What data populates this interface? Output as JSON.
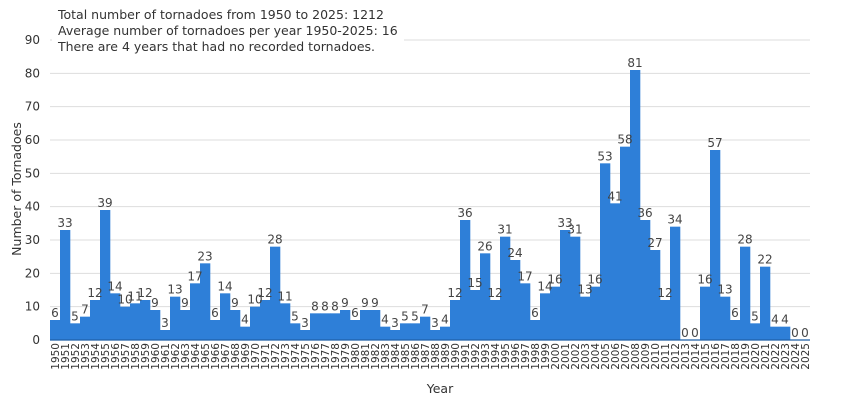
{
  "chart_data": {
    "type": "bar",
    "title": "",
    "xlabel": "Year",
    "ylabel": "Number of Tornadoes",
    "ylim": [
      0,
      90
    ],
    "yticks": [
      0,
      10,
      20,
      30,
      40,
      50,
      60,
      70,
      80,
      90
    ],
    "grid": "horizontal",
    "bar_color": "#2e7fd8",
    "axis_color": "#1f5fa8",
    "annotations": [
      "Total number of tornadoes from 1950 to 2025: 1212",
      "Average number of tornadoes per year 1950-2025: 16",
      "There are 4 years that had no recorded tornadoes."
    ],
    "categories": [
      "1950",
      "1951",
      "1952",
      "1953",
      "1954",
      "1955",
      "1956",
      "1957",
      "1958",
      "1959",
      "1960",
      "1961",
      "1962",
      "1963",
      "1964",
      "1965",
      "1966",
      "1967",
      "1968",
      "1969",
      "1970",
      "1971",
      "1972",
      "1973",
      "1974",
      "1975",
      "1976",
      "1977",
      "1978",
      "1979",
      "1980",
      "1981",
      "1982",
      "1983",
      "1984",
      "1985",
      "1986",
      "1987",
      "1988",
      "1989",
      "1990",
      "1991",
      "1992",
      "1993",
      "1994",
      "1995",
      "1996",
      "1997",
      "1998",
      "1999",
      "2000",
      "2001",
      "2002",
      "2003",
      "2004",
      "2005",
      "2006",
      "2007",
      "2008",
      "2009",
      "2010",
      "2011",
      "2012",
      "2013",
      "2014",
      "2015",
      "2016",
      "2017",
      "2018",
      "2019",
      "2020",
      "2021",
      "2022",
      "2023",
      "2024",
      "2025"
    ],
    "values": [
      6,
      33,
      5,
      7,
      12,
      39,
      14,
      10,
      11,
      12,
      9,
      3,
      13,
      9,
      17,
      23,
      6,
      14,
      9,
      4,
      10,
      12,
      28,
      11,
      5,
      3,
      8,
      8,
      8,
      9,
      6,
      9,
      9,
      4,
      3,
      5,
      5,
      7,
      3,
      4,
      12,
      36,
      15,
      26,
      12,
      31,
      24,
      17,
      6,
      14,
      16,
      33,
      31,
      13,
      16,
      53,
      41,
      58,
      81,
      36,
      27,
      12,
      34,
      0,
      0,
      16,
      57,
      13,
      6,
      28,
      5,
      22,
      4,
      4,
      0,
      0
    ]
  }
}
